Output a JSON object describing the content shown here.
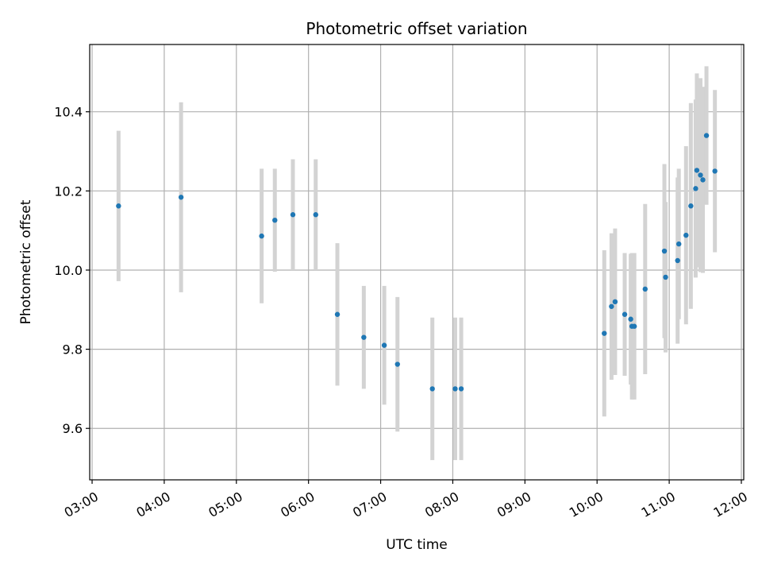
{
  "chart_data": {
    "type": "scatter",
    "title": "Photometric offset variation",
    "xlabel": "UTC time",
    "ylabel": "Photometric offset",
    "x_unit": "hours UTC",
    "xlim": [
      "02:58",
      "12:02"
    ],
    "ylim": [
      9.47,
      10.57
    ],
    "grid": true,
    "x_ticks": [
      "03:00",
      "04:00",
      "05:00",
      "06:00",
      "07:00",
      "08:00",
      "09:00",
      "10:00",
      "11:00",
      "12:00"
    ],
    "y_ticks": [
      "9.6",
      "9.8",
      "10.0",
      "10.2",
      "10.4"
    ],
    "colors": {
      "point": "#1f77b4",
      "errorbar": "#d3d3d3",
      "grid": "#b0b0b0"
    },
    "points": [
      {
        "x": "03:22",
        "y": 10.162,
        "err": 0.19
      },
      {
        "x": "04:14",
        "y": 10.184,
        "err": 0.24
      },
      {
        "x": "05:21",
        "y": 10.086,
        "err": 0.17
      },
      {
        "x": "05:32",
        "y": 10.126,
        "err": 0.13
      },
      {
        "x": "05:47",
        "y": 10.14,
        "err": 0.14
      },
      {
        "x": "06:06",
        "y": 10.14,
        "err": 0.14
      },
      {
        "x": "06:24",
        "y": 9.888,
        "err": 0.18
      },
      {
        "x": "06:46",
        "y": 9.83,
        "err": 0.13
      },
      {
        "x": "07:03",
        "y": 9.81,
        "err": 0.15
      },
      {
        "x": "07:14",
        "y": 9.762,
        "err": 0.17
      },
      {
        "x": "07:43",
        "y": 9.7,
        "err": 0.18
      },
      {
        "x": "08:02",
        "y": 9.7,
        "err": 0.18
      },
      {
        "x": "08:07",
        "y": 9.7,
        "err": 0.18
      },
      {
        "x": "10:06",
        "y": 9.84,
        "err": 0.21
      },
      {
        "x": "10:12",
        "y": 9.908,
        "err": 0.185
      },
      {
        "x": "10:15",
        "y": 9.92,
        "err": 0.185
      },
      {
        "x": "10:23",
        "y": 9.888,
        "err": 0.155
      },
      {
        "x": "10:28",
        "y": 9.876,
        "err": 0.165
      },
      {
        "x": "10:29",
        "y": 9.858,
        "err": 0.185
      },
      {
        "x": "10:31",
        "y": 9.858,
        "err": 0.185
      },
      {
        "x": "10:40",
        "y": 9.952,
        "err": 0.215
      },
      {
        "x": "10:56",
        "y": 10.048,
        "err": 0.22
      },
      {
        "x": "10:57",
        "y": 9.982,
        "err": 0.19
      },
      {
        "x": "11:07",
        "y": 10.024,
        "err": 0.21
      },
      {
        "x": "11:08",
        "y": 10.066,
        "err": 0.19
      },
      {
        "x": "11:14",
        "y": 10.088,
        "err": 0.225
      },
      {
        "x": "11:18",
        "y": 10.162,
        "err": 0.26
      },
      {
        "x": "11:22",
        "y": 10.206,
        "err": 0.225
      },
      {
        "x": "11:23",
        "y": 10.252,
        "err": 0.245
      },
      {
        "x": "11:26",
        "y": 10.24,
        "err": 0.245
      },
      {
        "x": "11:28",
        "y": 10.228,
        "err": 0.235
      },
      {
        "x": "11:31",
        "y": 10.34,
        "err": 0.175
      },
      {
        "x": "11:38",
        "y": 10.25,
        "err": 0.205
      }
    ]
  }
}
